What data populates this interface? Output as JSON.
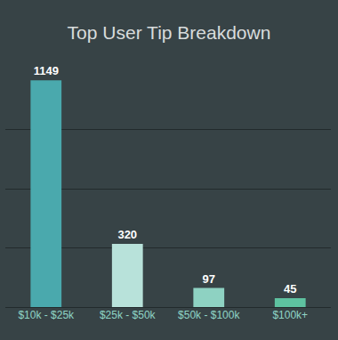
{
  "chart_data": {
    "type": "bar",
    "title": "Top User Tip Breakdown",
    "categories": [
      "$10k - $25k",
      "$25k - $50k",
      "$50k - $100k",
      "$100k+"
    ],
    "values": [
      1149,
      320,
      97,
      45
    ],
    "colors": [
      "#4aa9ad",
      "#b8e2da",
      "#8ed2c2",
      "#5ec2a0"
    ],
    "ylim": [
      0,
      1200
    ],
    "yticks": [
      0,
      300,
      600,
      900,
      1200
    ],
    "grid": true,
    "data_labels": true,
    "tick_labels": "x"
  }
}
